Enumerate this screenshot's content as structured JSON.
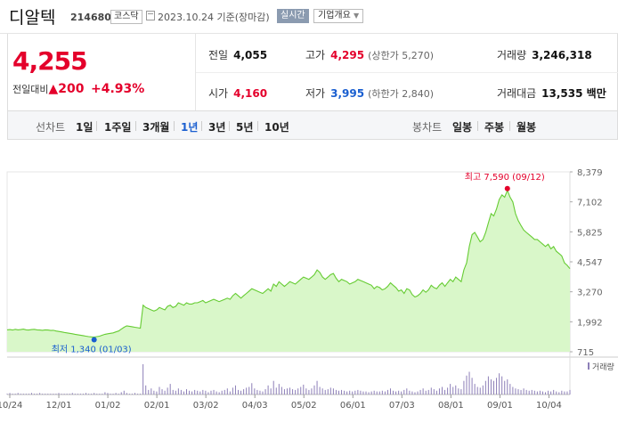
{
  "header": {
    "name": "디알텍",
    "code": "214680",
    "market": "코스닥",
    "asof": "2023.10.24 기준(장마감)",
    "realtime": "실시간",
    "company_info": "기업개요"
  },
  "quote": {
    "price": "4,255",
    "change_label": "전일대비",
    "change_value": "200",
    "change_pct": "+4.93%",
    "prev_label": "전일",
    "prev": "4,055",
    "high_label": "고가",
    "high": "4,295",
    "upper_limit": "(상한가 5,270)",
    "volume_label": "거래량",
    "volume": "3,246,318",
    "open_label": "시가",
    "open": "4,160",
    "low_label": "저가",
    "low": "3,995",
    "lower_limit": "(하한가 2,840)",
    "amount_label": "거래대금",
    "amount": "13,535 백만"
  },
  "tabs": {
    "line_label": "선차트",
    "line": [
      "1일",
      "1주일",
      "3개월",
      "1년",
      "3년",
      "5년",
      "10년"
    ],
    "active": "1년",
    "candle_label": "봉차트",
    "candle": [
      "일봉",
      "주봉",
      "월봉"
    ]
  },
  "chart_data": {
    "type": "area",
    "y_ticks": [
      "8,379",
      "7,102",
      "5,825",
      "4,547",
      "3,270",
      "1,992",
      "715"
    ],
    "ylim": [
      715,
      8379
    ],
    "x_ticks": [
      "10/24",
      "12/01",
      "01/02",
      "02/01",
      "03/02",
      "04/03",
      "05/02",
      "06/01",
      "07/03",
      "08/01",
      "09/01",
      "10/04"
    ],
    "high_label": "최고 7,590 (09/12)",
    "low_label": "최저 1,340 (01/03)",
    "volume_legend": "거래량",
    "accent": "#66cc33",
    "fill": "#d9f7c9",
    "series": [
      {
        "values": [
          1650,
          1660,
          1640,
          1670,
          1650,
          1660,
          1680,
          1650,
          1640,
          1660,
          1670,
          1650,
          1640,
          1630,
          1650,
          1640,
          1620,
          1630,
          1600,
          1580,
          1560,
          1540,
          1520,
          1500,
          1480,
          1460,
          1440,
          1420,
          1400,
          1380,
          1360,
          1350,
          1340,
          1360,
          1380,
          1420,
          1460,
          1480,
          1500,
          1520,
          1560,
          1600,
          1680,
          1760,
          1820,
          1800,
          1780,
          1760,
          1740,
          1720,
          2700,
          2600,
          2550,
          2500,
          2450,
          2500,
          2600,
          2550,
          2500,
          2650,
          2700,
          2600,
          2650,
          2800,
          2750,
          2700,
          2800,
          2750,
          2750,
          2800,
          2800,
          2850,
          2900,
          2800,
          2850,
          2900,
          2950,
          2900,
          2850,
          2900,
          2950,
          3000,
          2950,
          3100,
          3200,
          3100,
          3000,
          3100,
          3200,
          3300,
          3400,
          3350,
          3300,
          3250,
          3200,
          3300,
          3400,
          3300,
          3600,
          3500,
          3700,
          3600,
          3500,
          3600,
          3700,
          3650,
          3600,
          3700,
          3800,
          3900,
          3850,
          3800,
          3900,
          4000,
          4200,
          4100,
          3900,
          3800,
          3900,
          4000,
          4050,
          3850,
          3700,
          3800,
          3750,
          3700,
          3600,
          3650,
          3700,
          3800,
          3750,
          3700,
          3650,
          3600,
          3550,
          3400,
          3500,
          3450,
          3350,
          3400,
          3500,
          3650,
          3550,
          3450,
          3300,
          3350,
          3200,
          3400,
          3350,
          3150,
          3050,
          3100,
          3200,
          3350,
          3250,
          3350,
          3550,
          3450,
          3400,
          3550,
          3650,
          3500,
          3650,
          3800,
          3700,
          3900,
          3800,
          3700,
          4200,
          4500,
          5200,
          5700,
          5800,
          5600,
          5400,
          5500,
          5800,
          6200,
          6600,
          6500,
          6800,
          7200,
          7400,
          7300,
          7590,
          7300,
          7100,
          6600,
          6300,
          6100,
          5900,
          5800,
          5700,
          5600,
          5500,
          5500,
          5400,
          5300,
          5200,
          5300,
          5100,
          5200,
          5000,
          4900,
          4800,
          4500,
          4400,
          4255
        ]
      },
      {
        "name": "거래량",
        "values": [
          1,
          2,
          1,
          1,
          2,
          1,
          1,
          1,
          1,
          2,
          1,
          1,
          2,
          1,
          1,
          1,
          1,
          1,
          1,
          2,
          1,
          1,
          1,
          1,
          2,
          1,
          1,
          1,
          1,
          2,
          1,
          1,
          2,
          1,
          1,
          1,
          3,
          2,
          1,
          1,
          2,
          1,
          3,
          5,
          2,
          1,
          1,
          2,
          1,
          1,
          40,
          12,
          6,
          8,
          5,
          4,
          10,
          7,
          5,
          9,
          14,
          6,
          5,
          8,
          6,
          4,
          7,
          5,
          4,
          6,
          5,
          4,
          6,
          5,
          3,
          5,
          6,
          4,
          3,
          5,
          6,
          8,
          4,
          9,
          12,
          6,
          5,
          7,
          9,
          10,
          15,
          8,
          6,
          5,
          4,
          7,
          12,
          8,
          18,
          9,
          14,
          10,
          7,
          8,
          9,
          7,
          6,
          8,
          10,
          13,
          8,
          6,
          8,
          12,
          18,
          10,
          8,
          6,
          7,
          9,
          8,
          6,
          5,
          6,
          5,
          4,
          5,
          4,
          5,
          6,
          5,
          4,
          4,
          3,
          4,
          5,
          4,
          4,
          5,
          4,
          6,
          8,
          5,
          4,
          5,
          4,
          6,
          8,
          5,
          4,
          3,
          4,
          6,
          8,
          5,
          6,
          9,
          7,
          5,
          8,
          10,
          6,
          9,
          14,
          10,
          12,
          8,
          7,
          18,
          25,
          30,
          22,
          14,
          10,
          9,
          12,
          18,
          24,
          20,
          18,
          22,
          28,
          24,
          18,
          20,
          14,
          10,
          8,
          7,
          6,
          8,
          6,
          5,
          6,
          5,
          4,
          5,
          4,
          3,
          5,
          4,
          6,
          4,
          3,
          5,
          4,
          4,
          6
        ]
      }
    ]
  }
}
